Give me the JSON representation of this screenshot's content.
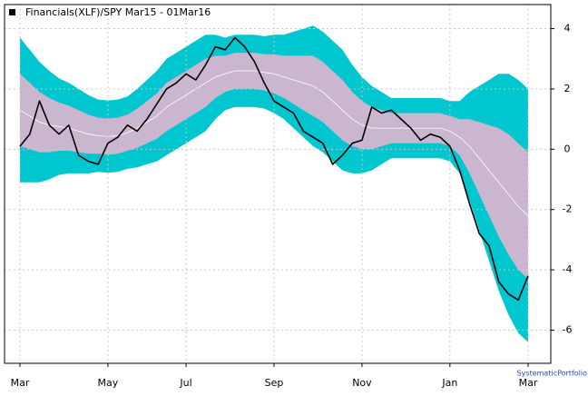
{
  "chart_data": {
    "type": "band-line",
    "legend": "Financials(XLF)/SPY Mar15 - 01Mar16",
    "watermark": "SystematicPortfolio",
    "categories": [
      "Mar",
      null,
      null,
      null,
      null,
      null,
      null,
      null,
      null,
      "May",
      null,
      null,
      null,
      null,
      null,
      null,
      null,
      "Jul",
      null,
      null,
      null,
      null,
      null,
      null,
      null,
      null,
      "Sep",
      null,
      null,
      null,
      null,
      null,
      null,
      null,
      null,
      "Nov",
      null,
      null,
      null,
      null,
      null,
      null,
      null,
      null,
      "Jan",
      null,
      null,
      null,
      null,
      null,
      null,
      null,
      "Mar"
    ],
    "series": [
      {
        "name": "Financials(XLF)/SPY Mar15 - 01Mar16",
        "color": "#000000",
        "values": [
          0.1,
          0.5,
          1.6,
          0.8,
          0.5,
          0.8,
          -0.2,
          -0.4,
          -0.5,
          0.2,
          0.4,
          0.8,
          0.6,
          1.0,
          1.5,
          2.0,
          2.2,
          2.5,
          2.3,
          2.8,
          3.4,
          3.3,
          3.7,
          3.4,
          2.9,
          2.2,
          1.6,
          1.4,
          1.2,
          0.6,
          0.4,
          0.2,
          -0.5,
          -0.2,
          0.2,
          0.3,
          1.4,
          1.2,
          1.3,
          1.0,
          0.7,
          0.3,
          0.5,
          0.4,
          0.1,
          -0.7,
          -1.8,
          -2.8,
          -3.2,
          -4.4,
          -4.8,
          -5.0,
          -4.2
        ]
      }
    ],
    "bands": {
      "center": {
        "color": "#ffffff",
        "values": [
          1.3,
          1.1,
          0.9,
          0.8,
          0.75,
          0.7,
          0.6,
          0.5,
          0.45,
          0.42,
          0.45,
          0.55,
          0.7,
          0.9,
          1.1,
          1.4,
          1.6,
          1.8,
          2.0,
          2.2,
          2.4,
          2.5,
          2.6,
          2.6,
          2.6,
          2.55,
          2.5,
          2.4,
          2.3,
          2.2,
          2.1,
          1.9,
          1.6,
          1.3,
          1.0,
          0.8,
          0.7,
          0.7,
          0.7,
          0.7,
          0.7,
          0.7,
          0.7,
          0.7,
          0.6,
          0.4,
          0.1,
          -0.3,
          -0.7,
          -1.1,
          -1.5,
          -1.9,
          -2.2
        ]
      },
      "inner": {
        "color": "#cbb6d0",
        "upper": [
          2.5,
          2.2,
          1.9,
          1.7,
          1.55,
          1.45,
          1.3,
          1.15,
          1.05,
          1.02,
          1.05,
          1.15,
          1.35,
          1.6,
          1.85,
          2.2,
          2.4,
          2.6,
          2.8,
          3.0,
          3.1,
          3.1,
          3.2,
          3.2,
          3.2,
          3.15,
          3.15,
          3.1,
          3.1,
          3.1,
          3.1,
          2.9,
          2.6,
          2.3,
          1.9,
          1.6,
          1.4,
          1.3,
          1.2,
          1.2,
          1.2,
          1.2,
          1.2,
          1.2,
          1.1,
          1.0,
          1.0,
          0.9,
          0.8,
          0.7,
          0.5,
          0.2,
          -0.1
        ],
        "lower": [
          0.1,
          0,
          -0.1,
          -0.1,
          -0.05,
          -0.05,
          -0.1,
          -0.15,
          -0.15,
          -0.18,
          -0.15,
          -0.05,
          0.05,
          0.2,
          0.35,
          0.6,
          0.8,
          1.0,
          1.2,
          1.4,
          1.7,
          1.9,
          2.0,
          2.0,
          2.0,
          1.95,
          1.85,
          1.7,
          1.5,
          1.3,
          1.1,
          0.9,
          0.6,
          0.3,
          0.1,
          0,
          0,
          0.1,
          0.2,
          0.2,
          0.2,
          0.2,
          0.2,
          0.2,
          0.1,
          -0.2,
          -0.8,
          -1.5,
          -2.2,
          -2.9,
          -3.5,
          -4.0,
          -4.3
        ]
      },
      "outer": {
        "color": "#00c6cf",
        "upper": [
          3.7,
          3.3,
          2.9,
          2.6,
          2.35,
          2.2,
          2.0,
          1.8,
          1.65,
          1.62,
          1.65,
          1.75,
          2.0,
          2.3,
          2.6,
          3.0,
          3.2,
          3.4,
          3.6,
          3.8,
          3.8,
          3.7,
          3.8,
          3.8,
          3.8,
          3.75,
          3.8,
          3.8,
          3.9,
          4.0,
          4.1,
          3.9,
          3.6,
          3.3,
          2.8,
          2.4,
          2.1,
          1.9,
          1.7,
          1.7,
          1.7,
          1.7,
          1.7,
          1.7,
          1.6,
          1.6,
          1.9,
          2.1,
          2.3,
          2.5,
          2.5,
          2.3,
          2.0
        ],
        "lower": [
          -1.1,
          -1.1,
          -1.1,
          -1.0,
          -0.85,
          -0.8,
          -0.8,
          -0.8,
          -0.75,
          -0.78,
          -0.75,
          -0.65,
          -0.6,
          -0.5,
          -0.4,
          -0.2,
          0,
          0.2,
          0.4,
          0.6,
          1.0,
          1.3,
          1.4,
          1.4,
          1.4,
          1.35,
          1.2,
          1.0,
          0.7,
          0.4,
          0.1,
          -0.1,
          -0.4,
          -0.7,
          -0.8,
          -0.8,
          -0.7,
          -0.5,
          -0.3,
          -0.3,
          -0.3,
          -0.3,
          -0.3,
          -0.3,
          -0.4,
          -0.8,
          -1.7,
          -2.7,
          -3.7,
          -4.7,
          -5.5,
          -6.1,
          -6.4
        ]
      }
    },
    "ylim": [
      -7.1,
      4.8
    ],
    "yticks": [
      -6,
      -4,
      -2,
      0,
      2,
      4
    ],
    "grid": true
  }
}
